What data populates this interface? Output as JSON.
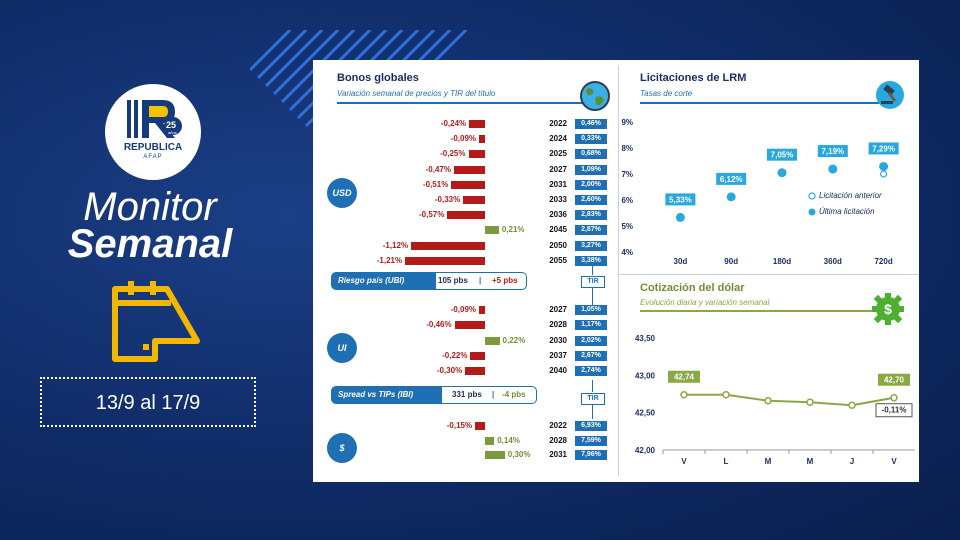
{
  "brand": {
    "name": "REPUBLICA",
    "sub": "AFAP",
    "years": "25",
    "years_word": "años"
  },
  "title_line1": "Monitor",
  "title_line2": "Semanal",
  "date_range": "13/9 al 17/9",
  "colors": {
    "negative": "#b31b1b",
    "positive": "#7a9a3c",
    "accent": "#1f6fb5",
    "lrm_point": "#29a8e0",
    "dollar_line": "#8aa845"
  },
  "bonos": {
    "title": "Bonos globales",
    "subtitle": "Variación semanal de precios y TIR del título",
    "usd": {
      "badge": "USD",
      "rows": [
        {
          "var": -0.24,
          "label": "-0,24%",
          "year": "2022",
          "tir": "0,46%"
        },
        {
          "var": -0.09,
          "label": "-0,09%",
          "year": "2024",
          "tir": "0,33%"
        },
        {
          "var": -0.25,
          "label": "-0,25%",
          "year": "2025",
          "tir": "0,68%"
        },
        {
          "var": -0.47,
          "label": "-0,47%",
          "year": "2027",
          "tir": "1,09%"
        },
        {
          "var": -0.51,
          "label": "-0,51%",
          "year": "2031",
          "tir": "2,00%"
        },
        {
          "var": -0.33,
          "label": "-0,33%",
          "year": "2033",
          "tir": "2,60%"
        },
        {
          "var": -0.57,
          "label": "-0,57%",
          "year": "2036",
          "tir": "2,83%"
        },
        {
          "var": 0.21,
          "label": "0,21%",
          "year": "2045",
          "tir": "2,87%"
        },
        {
          "var": -1.12,
          "label": "-1,12%",
          "year": "2050",
          "tir": "3,27%"
        },
        {
          "var": -1.21,
          "label": "-1,21%",
          "year": "2055",
          "tir": "3,38%"
        }
      ]
    },
    "riesgo": {
      "label": "Riesgo país (UBI)",
      "value": "105 pbs",
      "sep": "|",
      "change": "+5 pbs"
    },
    "ui": {
      "badge": "UI",
      "rows": [
        {
          "var": -0.09,
          "label": "-0,09%",
          "year": "2027",
          "tir": "1,05%"
        },
        {
          "var": -0.46,
          "label": "-0,46%",
          "year": "2028",
          "tir": "1,17%"
        },
        {
          "var": 0.22,
          "label": "0,22%",
          "year": "2030",
          "tir": "2,02%"
        },
        {
          "var": -0.22,
          "label": "-0,22%",
          "year": "2037",
          "tir": "2,67%"
        },
        {
          "var": -0.3,
          "label": "-0,30%",
          "year": "2040",
          "tir": "2,74%"
        }
      ]
    },
    "spread": {
      "label": "Spread vs TIPs (IBI)",
      "value": "331 pbs",
      "sep": "|",
      "change": "-4 pbs"
    },
    "peso": {
      "badge": "$",
      "rows": [
        {
          "var": -0.15,
          "label": "-0,15%",
          "year": "2022",
          "tir": "6,93%"
        },
        {
          "var": 0.14,
          "label": "0,14%",
          "year": "2028",
          "tir": "7,59%"
        },
        {
          "var": 0.3,
          "label": "0,30%",
          "year": "2031",
          "tir": "7,96%"
        }
      ]
    },
    "tir_tag": "TIR"
  },
  "lrm": {
    "title": "Licitaciones de LRM",
    "subtitle": "Tasas de corte",
    "legend_prev": "Licitación anterior",
    "legend_last": "Última licitación"
  },
  "dolar": {
    "title": "Cotización del dólar",
    "subtitle": "Evolución diaria y variación semanal",
    "first_label": "42,74",
    "last_label": "42,70",
    "change_label": "-0,11%"
  },
  "chart_data": [
    {
      "type": "scatter",
      "title": "Licitaciones de LRM",
      "subtitle": "Tasas de corte",
      "categories": [
        "30d",
        "90d",
        "180d",
        "360d",
        "720d"
      ],
      "series": [
        {
          "name": "Última licitación",
          "values": [
            5.33,
            6.12,
            7.05,
            7.19,
            7.29
          ],
          "labels": [
            "5,33%",
            "6,12%",
            "7,05%",
            "7,19%",
            "7,29%"
          ]
        },
        {
          "name": "Licitación anterior",
          "values": [
            null,
            null,
            null,
            null,
            7.0
          ]
        }
      ],
      "ylim": [
        4,
        9
      ],
      "yticks": [
        "4%",
        "5%",
        "6%",
        "7%",
        "8%",
        "9%"
      ],
      "legend": "right"
    },
    {
      "type": "line",
      "title": "Cotización del dólar",
      "subtitle": "Evolución diaria y variación semanal",
      "categories": [
        "V",
        "L",
        "M",
        "M",
        "J",
        "V"
      ],
      "values": [
        42.74,
        42.74,
        42.66,
        42.64,
        42.6,
        42.7
      ],
      "ylim": [
        42.0,
        43.5
      ],
      "yticks": [
        "42,00",
        "42,50",
        "43,00",
        "43,50"
      ]
    }
  ]
}
